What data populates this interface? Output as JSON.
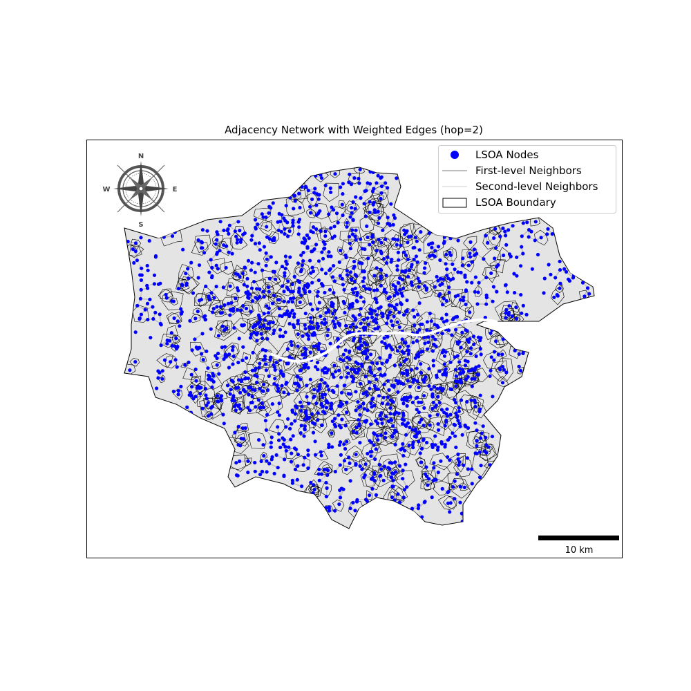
{
  "title": "Adjacency Network with Weighted Edges (hop=2)",
  "legend": {
    "nodes": "LSOA Nodes",
    "first_level": "First-level Neighbors",
    "second_level": "Second-level Neighbors",
    "boundary": "LSOA Boundary"
  },
  "colors": {
    "node": "#0000ff",
    "first_level_edge": "#bdbdbd",
    "second_level_edge": "#e6e6e6",
    "boundary": "#000000",
    "region_fill": "#d3d3d3"
  },
  "compass": {
    "north": "N",
    "south": "S",
    "east": "E",
    "west": "W"
  },
  "scale_bar": {
    "label": "10 km",
    "length_km": 10
  }
}
